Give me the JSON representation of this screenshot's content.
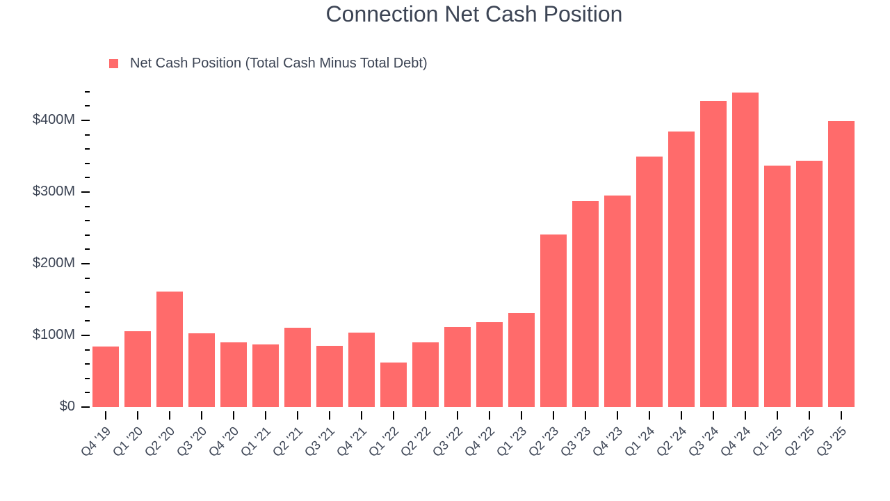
{
  "title": "Connection Net Cash Position",
  "legend": [
    {
      "label": "Net Cash Position (Total Cash Minus Total Debt)",
      "color": "#ff6b6b"
    }
  ],
  "colors": {
    "bar": "#ff6b6b",
    "text": "#3c4454",
    "axis": "#000000",
    "background": "#ffffff"
  },
  "axes": {
    "y": {
      "ticks": [
        {
          "value": 0,
          "label": "$0"
        },
        {
          "value": 100,
          "label": "$100M"
        },
        {
          "value": 200,
          "label": "$200M"
        },
        {
          "value": 300,
          "label": "$300M"
        },
        {
          "value": 400,
          "label": "$400M"
        }
      ],
      "minor_step": 20,
      "max": 440
    }
  },
  "chart_data": {
    "type": "bar",
    "title": "Connection Net Cash Position",
    "xlabel": "",
    "ylabel": "",
    "unit": "$M",
    "ylim": [
      0,
      440
    ],
    "grid": false,
    "legend_position": "top-left",
    "categories": [
      "Q4 '19",
      "Q1 '20",
      "Q2 '20",
      "Q3 '20",
      "Q4 '20",
      "Q1 '21",
      "Q2 '21",
      "Q3 '21",
      "Q4 '21",
      "Q1 '22",
      "Q2 '22",
      "Q3 '22",
      "Q4 '22",
      "Q1 '23",
      "Q2 '23",
      "Q3 '23",
      "Q4 '23",
      "Q1 '24",
      "Q2 '24",
      "Q3 '24",
      "Q4 '24",
      "Q1 '25",
      "Q2 '25",
      "Q3 '25"
    ],
    "series": [
      {
        "name": "Net Cash Position (Total Cash Minus Total Debt)",
        "color": "#ff6b6b",
        "values": [
          84,
          106,
          161,
          103,
          90,
          87,
          111,
          85,
          104,
          62,
          90,
          112,
          118,
          131,
          241,
          287,
          295,
          350,
          384,
          427,
          439,
          337,
          344,
          399
        ]
      }
    ]
  }
}
